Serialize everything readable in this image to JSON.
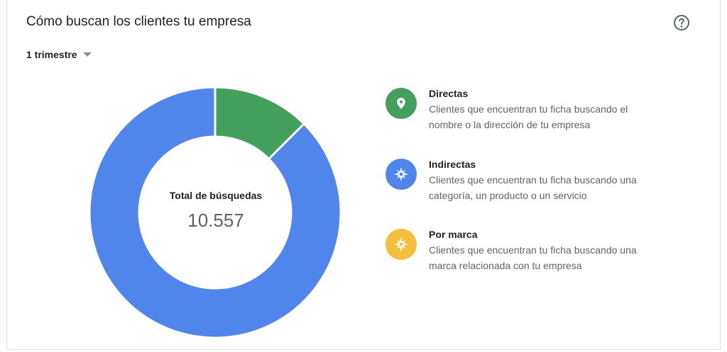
{
  "card": {
    "title": "Cómo buscan los clientes tu empresa",
    "help_icon": "help-circle-icon"
  },
  "period": {
    "selected": "1 trimestre",
    "icon": "caret-down-icon"
  },
  "chart_data": {
    "type": "pie",
    "center_label": "Total de búsquedas",
    "center_value": "10.557",
    "total": 10557,
    "series": [
      {
        "name": "Directas",
        "value": 1320,
        "color": "#43a05c"
      },
      {
        "name": "Indirectas",
        "value": 9237,
        "color": "#5086ec"
      },
      {
        "name": "Por marca",
        "value": 0,
        "color": "#f4be3f"
      }
    ]
  },
  "legend": [
    {
      "title": "Directas",
      "desc_line1": "Clientes que encuentran tu ficha buscando el",
      "desc_line2": "nombre o la dirección de tu empresa",
      "icon": "location-pin-icon",
      "color": "#43a05c"
    },
    {
      "title": "Indirectas",
      "desc_line1": "Clientes que encuentran tu ficha buscando una",
      "desc_line2": "categoría, un producto o un servicio",
      "icon": "compass-icon",
      "color": "#5086ec"
    },
    {
      "title": "Por marca",
      "desc_line1": "Clientes que encuentran tu ficha buscando una",
      "desc_line2": "marca relacionada con tu empresa",
      "icon": "compass-icon",
      "color": "#f4be3f"
    }
  ]
}
